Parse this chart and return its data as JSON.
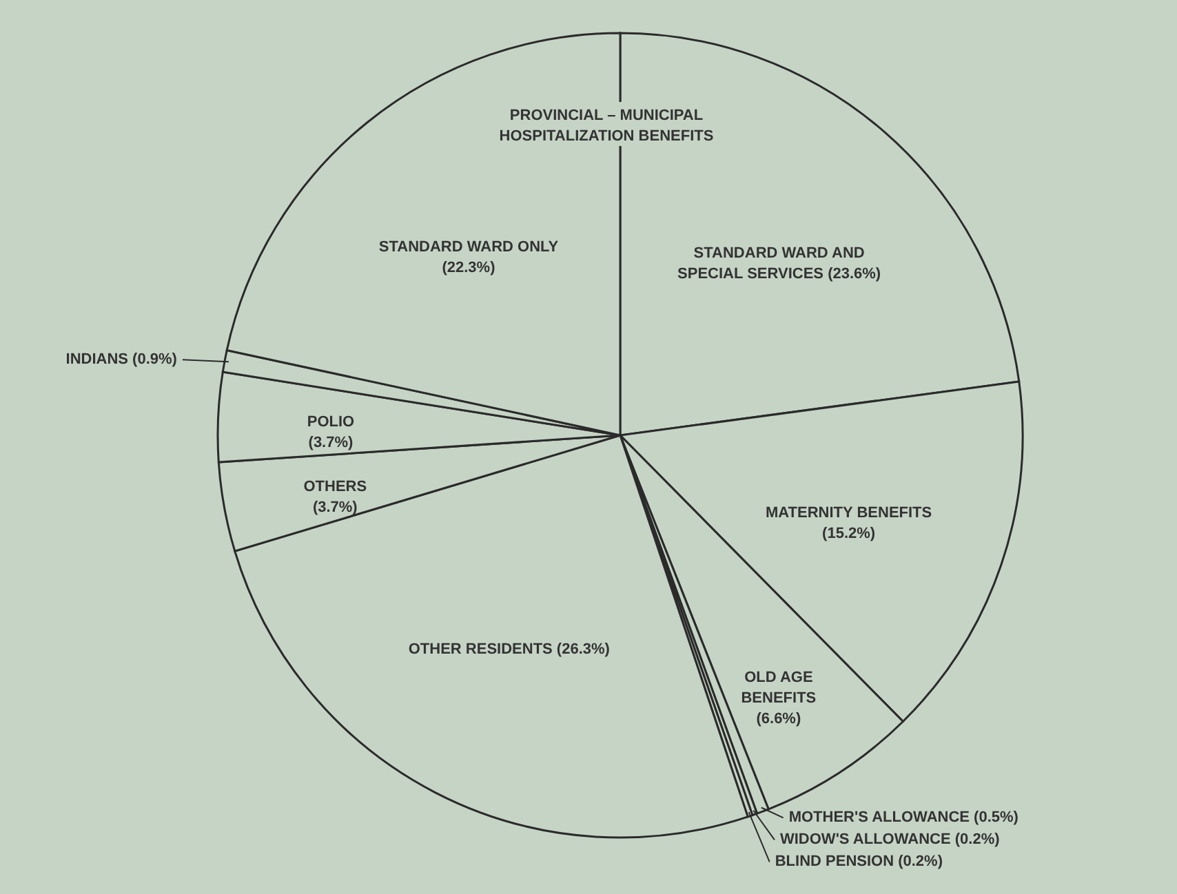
{
  "chart_data": {
    "type": "pie",
    "categories": [
      "STANDARD WARD AND SPECIAL SERVICES",
      "MATERNITY BENEFITS",
      "OLD AGE BENEFITS",
      "MOTHER'S ALLOWANCE",
      "WIDOW'S ALLOWANCE",
      "BLIND PENSION",
      "OTHER RESIDENTS",
      "OTHERS",
      "POLIO",
      "INDIANS",
      "STANDARD WARD ONLY"
    ],
    "values": [
      23.6,
      15.2,
      6.6,
      0.5,
      0.2,
      0.2,
      26.3,
      3.7,
      3.7,
      0.9,
      22.3
    ],
    "value_labels": [
      "(23.6%)",
      "(15.2%)",
      "(6.6%)",
      "(0.5%)",
      "(0.2%)",
      "(0.2%)",
      "(26.3%)",
      "(3.7%)",
      "(3.7%)",
      "(0.9%)",
      "(22.3%)"
    ],
    "colors": [
      "#c6d4c6",
      "#c6d4c6",
      "#c6d4c6",
      "#c6d4c6",
      "#c6d4c6",
      "#c6d4c6",
      "#c6d4c6",
      "#c6d4c6",
      "#c6d4c6",
      "#c6d4c6",
      "#c6d4c6"
    ],
    "annotations": [
      "PROVINCIAL – MUNICIPAL HOSPITALIZATION BENEFITS"
    ]
  }
}
